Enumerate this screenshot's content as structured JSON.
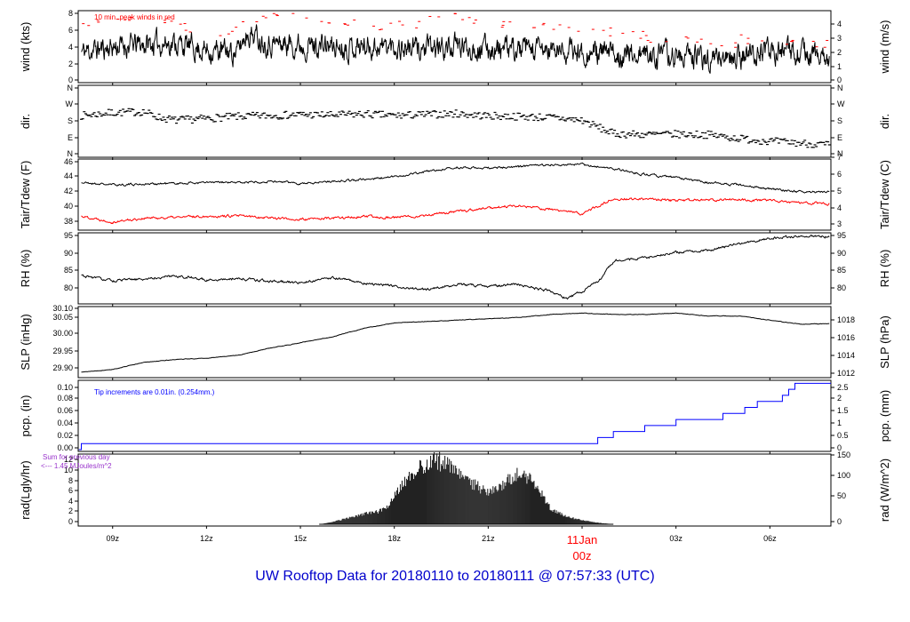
{
  "title": "UW Rooftop Data for 20180110  to  20180111 @ 07:57:33  (UTC)",
  "colors": {
    "title": "#0000cc",
    "peak": "#ff0000",
    "dew": "#ff0000",
    "pcp": "#0000ff",
    "note_rad": "#9933cc",
    "midnight": "#ff0000",
    "trace": "#000000"
  },
  "chart_data": [
    {
      "type": "line",
      "name": "wind",
      "ylabel_left": "wind (kts)",
      "ylabel_right": "wind (m/s)",
      "yticks_left": [
        "0",
        "2",
        "4",
        "6",
        "8"
      ],
      "yticks_right": [
        "0",
        "1",
        "2",
        "3",
        "4"
      ],
      "ylim": [
        0,
        9
      ],
      "annotation": "10 min. peak winds in red",
      "x": [
        8,
        9,
        10,
        11,
        12,
        13,
        13.3,
        14,
        15,
        16,
        17,
        18,
        19,
        20,
        21,
        22,
        23,
        24,
        25,
        26,
        27,
        28,
        29,
        30,
        31,
        31.9
      ],
      "y": [
        3.8,
        4.5,
        4.8,
        5.0,
        4.0,
        3.8,
        6.5,
        5.0,
        4.8,
        4.5,
        4.6,
        4.5,
        4.2,
        4.5,
        4.3,
        4.0,
        4.0,
        3.8,
        3.5,
        3.5,
        3.3,
        3.0,
        3.2,
        4.0,
        3.5,
        3.0
      ],
      "peaks_x": [
        8.5,
        9.5,
        10.5,
        11.5,
        12.5,
        13.5,
        14.5,
        15.5,
        16.5,
        17.5,
        18.5,
        19.5,
        20.5,
        21.5,
        22.5,
        23.5,
        24.5,
        25.5,
        26.5,
        27.5,
        28.5,
        29.5,
        30.5,
        31.5
      ],
      "peaks_y": [
        7.5,
        7.8,
        7.6,
        7.0,
        6.5,
        8.0,
        8.5,
        7.8,
        7.6,
        7.2,
        7.5,
        8.5,
        7.8,
        7.5,
        7.0,
        6.8,
        6.5,
        6.0,
        5.5,
        5.2,
        5.0,
        5.5,
        5.3,
        4.8
      ]
    },
    {
      "type": "scatter",
      "name": "dir",
      "ylabel_left": "dir.",
      "ylabel_right": "dir.",
      "yticks_left": [
        "N",
        "E",
        "S",
        "W",
        "N"
      ],
      "yticks_right": [
        "N",
        "E",
        "S",
        "W",
        "N"
      ],
      "ylim": [
        0,
        360
      ],
      "x": [
        8,
        9,
        10,
        10.5,
        11,
        12,
        13,
        14,
        15,
        16,
        17,
        18,
        19,
        20,
        21,
        22,
        23,
        24,
        25,
        26,
        27,
        28,
        29,
        30,
        31,
        31.9
      ],
      "y": [
        210,
        225,
        230,
        200,
        185,
        195,
        205,
        210,
        215,
        212,
        218,
        210,
        215,
        220,
        208,
        205,
        200,
        185,
        115,
        110,
        112,
        110,
        90,
        75,
        65,
        55
      ]
    },
    {
      "type": "line",
      "name": "temp",
      "ylabel_left": "Tair/Tdew (F)",
      "ylabel_right": "Tair/Tdew (C)",
      "yticks_left": [
        "38",
        "40",
        "42",
        "44",
        "46"
      ],
      "yticks_right": [
        "3",
        "4",
        "5",
        "6",
        "7"
      ],
      "ylim": [
        36.8,
        46.1
      ],
      "x": [
        8,
        9,
        10,
        11,
        12,
        13,
        14,
        15,
        16,
        17,
        18,
        19,
        20,
        21,
        22,
        23,
        24,
        25,
        26,
        27,
        28,
        29,
        30,
        31,
        31.9
      ],
      "series": [
        {
          "y": [
            43.1,
            42.8,
            42.9,
            43.0,
            43.1,
            43.1,
            43.3,
            43.0,
            43.3,
            43.5,
            43.9,
            44.6,
            45.2,
            45.1,
            45.3,
            45.6,
            45.6,
            45.0,
            44.2,
            43.8,
            43.1,
            42.8,
            42.2,
            41.8,
            41.8
          ]
        },
        {
          "y": [
            38.5,
            37.7,
            38.2,
            38.3,
            38.5,
            38.5,
            38.3,
            38.0,
            38.2,
            38.4,
            38.3,
            38.6,
            39.1,
            39.6,
            39.9,
            39.4,
            38.8,
            40.9,
            40.8,
            40.6,
            40.7,
            40.8,
            40.6,
            40.3,
            40.2
          ]
        }
      ]
    },
    {
      "type": "line",
      "name": "rh",
      "ylabel_left": "RH (%)",
      "ylabel_right": "RH (%)",
      "yticks_left": [
        "80",
        "85",
        "90",
        "95"
      ],
      "yticks_right": [
        "80",
        "85",
        "90",
        "95"
      ],
      "ylim": [
        76.5,
        95.6
      ],
      "x": [
        8,
        9,
        10,
        11,
        12,
        13,
        14,
        15,
        16,
        17,
        18,
        19,
        20,
        21,
        22,
        23,
        23.5,
        24,
        24.6,
        25,
        26,
        27,
        28,
        29,
        30,
        31,
        31.9
      ],
      "y": [
        84.0,
        82.5,
        83.0,
        84.0,
        82.8,
        83.2,
        82.5,
        82.0,
        83.5,
        82.0,
        81.0,
        80.0,
        81.5,
        81.0,
        81.5,
        79.5,
        77.5,
        79.5,
        83.0,
        88.0,
        89.0,
        90.5,
        91.0,
        93.0,
        94.5,
        95.2,
        95.0
      ]
    },
    {
      "type": "line",
      "name": "slp",
      "ylabel_left": "SLP (inHg)",
      "ylabel_right": "SLP (hPa)",
      "yticks_left": [
        "29.90",
        "29.95",
        "30.00",
        "30.05",
        "30.10"
      ],
      "yticks_right": [
        "1012",
        "1014",
        "1016",
        "1018"
      ],
      "ylim": [
        29.872,
        30.112
      ],
      "x": [
        8,
        9,
        10,
        11,
        12,
        13,
        14,
        15,
        16,
        17,
        18,
        19,
        20,
        21,
        22,
        23,
        24,
        25,
        26,
        27,
        28,
        29,
        30,
        31,
        31.9
      ],
      "y": [
        29.885,
        29.895,
        29.92,
        29.93,
        29.935,
        29.945,
        29.97,
        29.99,
        30.01,
        30.04,
        30.06,
        30.065,
        30.07,
        30.075,
        30.08,
        30.09,
        30.095,
        30.09,
        30.09,
        30.095,
        30.085,
        30.085,
        30.07,
        30.055,
        30.058
      ]
    },
    {
      "type": "line",
      "name": "pcp",
      "ylabel_left": "pcp. (in)",
      "ylabel_right": "pcp. (mm)",
      "yticks_left": [
        "0.00",
        "0.02",
        "0.04",
        "0.06",
        "0.08",
        "0.10"
      ],
      "yticks_right": [
        "0",
        "0.5",
        "1",
        "1.5",
        "2",
        "2.5"
      ],
      "ylim": [
        0,
        0.112
      ],
      "annotation": "Tip increments are 0.01in. (0.254mm.)",
      "x": [
        7.92,
        8.0,
        24.5,
        25.0,
        26.0,
        27.0,
        28.5,
        29.2,
        29.6,
        30.4,
        30.6,
        30.8
      ],
      "y": [
        0.0,
        0.01,
        0.02,
        0.03,
        0.04,
        0.05,
        0.06,
        0.07,
        0.08,
        0.09,
        0.1,
        0.11
      ]
    },
    {
      "type": "area",
      "name": "rad",
      "ylabel_left": "rad(Lgly/hr)",
      "ylabel_right": "rad (W/m^2)",
      "yticks_left": [
        "0",
        "2",
        "4",
        "6",
        "8",
        "10",
        "12"
      ],
      "yticks_right": [
        "0",
        "50",
        "100",
        "150"
      ],
      "ylim": [
        0,
        13
      ],
      "annotation_lines": [
        "Sum for previous day",
        "<--- 1.45 MJoules/m^2"
      ],
      "x": [
        15.6,
        16.0,
        16.5,
        17.0,
        17.5,
        17.8,
        18.0,
        18.5,
        19.0,
        19.3,
        19.6,
        20.0,
        20.5,
        21.0,
        21.5,
        22.0,
        22.3,
        22.7,
        23.0,
        23.5,
        24.0,
        24.5,
        25.0
      ],
      "y": [
        0.0,
        0.4,
        1.2,
        2.0,
        2.5,
        3.5,
        5.5,
        10.0,
        11.5,
        12.5,
        12.0,
        10.0,
        8.0,
        6.0,
        8.0,
        10.0,
        9.0,
        6.0,
        3.0,
        1.5,
        0.8,
        0.3,
        0.0
      ]
    }
  ],
  "x_axis": {
    "ticks": [
      {
        "x": 9,
        "label": "09z"
      },
      {
        "x": 12,
        "label": "12z"
      },
      {
        "x": 15,
        "label": "15z"
      },
      {
        "x": 18,
        "label": "18z"
      },
      {
        "x": 21,
        "label": "21z"
      },
      {
        "x": 24,
        "label": "00z"
      },
      {
        "x": 27,
        "label": "03z"
      },
      {
        "x": 30,
        "label": "06z"
      }
    ],
    "date_label": "11Jan",
    "range": [
      7.9,
      31.95
    ]
  }
}
